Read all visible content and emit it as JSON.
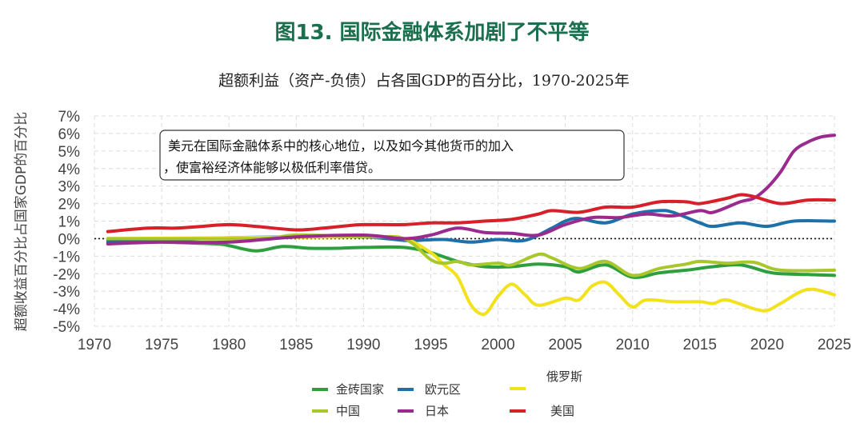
{
  "figure_title": "图13. 国际金融体系加剧了不平等",
  "chart_data": {
    "type": "line",
    "title": "超额利益（资产-负债）占各国GDP的百分比，1970-2025年",
    "xlabel": "",
    "ylabel": "超额收益百分比占国家GDP的百分比",
    "xlim": [
      1970,
      2025
    ],
    "ylim": [
      -5,
      7
    ],
    "x_ticks": [
      "1970",
      "1975",
      "1980",
      "1985",
      "1990",
      "1995",
      "2000",
      "2005",
      "2010",
      "2015",
      "2020",
      "2025"
    ],
    "y_ticks": [
      "7%",
      "6%",
      "5%",
      "4%",
      "3%",
      "2%",
      "1%",
      "0%",
      "-1%",
      "-2%",
      "-3%",
      "-4%",
      "-5%"
    ],
    "grid": true,
    "annotation": [
      "美元在国际金融体系中的核心地位，以及如今其他货币的加入",
      "，使富裕经济体能够以极低利率借贷。"
    ],
    "legend_position": "bottom",
    "series": [
      {
        "name": "金砖国家",
        "color": "#2e9e3e",
        "x": [
          1971,
          1975,
          1979,
          1980,
          1982,
          1984,
          1986,
          1988,
          1990,
          1993,
          1995,
          1997,
          1999,
          2001,
          2003,
          2005,
          2006,
          2008,
          2010,
          2012,
          2014,
          2016,
          2018,
          2020,
          2021,
          2023,
          2025
        ],
        "y": [
          -0.1,
          -0.2,
          -0.3,
          -0.4,
          -0.7,
          -0.45,
          -0.55,
          -0.55,
          -0.5,
          -0.5,
          -0.8,
          -1.3,
          -1.6,
          -1.6,
          -1.45,
          -1.6,
          -1.9,
          -1.5,
          -2.2,
          -1.95,
          -1.8,
          -1.6,
          -1.5,
          -1.9,
          -2.0,
          -2.05,
          -2.1
        ]
      },
      {
        "name": "欧元区",
        "color": "#1f6fa8",
        "x": [
          1971,
          1975,
          1980,
          1985,
          1990,
          1993,
          1994,
          1996,
          1998,
          2000,
          2002,
          2004,
          2005,
          2006,
          2008,
          2010,
          2012,
          2013,
          2015,
          2016,
          2018,
          2020,
          2022,
          2025
        ],
        "y": [
          -0.2,
          -0.1,
          0.05,
          0.1,
          0.1,
          -0.1,
          -0.1,
          -0.05,
          -0.2,
          -0.05,
          -0.1,
          0.6,
          1.0,
          1.15,
          0.9,
          1.4,
          1.6,
          1.5,
          0.9,
          0.7,
          0.9,
          0.7,
          1.0,
          1.0
        ]
      },
      {
        "name": "俄罗斯",
        "color": "#f2e21e",
        "x": [
          1971,
          1990,
          1993,
          1995,
          1996,
          1997,
          1998,
          1999,
          2000,
          2001,
          2002,
          2003,
          2005,
          2006,
          2007,
          2008,
          2009,
          2010,
          2011,
          2013,
          2015,
          2016,
          2017,
          2019,
          2020,
          2021,
          2023,
          2025
        ],
        "y": [
          0,
          0.1,
          0,
          -0.8,
          -1.5,
          -2.2,
          -3.8,
          -4.3,
          -3.3,
          -2.6,
          -3.2,
          -3.8,
          -3.4,
          -3.5,
          -2.7,
          -2.5,
          -3.2,
          -3.9,
          -3.5,
          -3.6,
          -3.6,
          -3.7,
          -3.5,
          -4.0,
          -4.1,
          -3.7,
          -2.9,
          -3.2
        ]
      },
      {
        "name": "中国",
        "color": "#a8c72a",
        "x": [
          1971,
          1982,
          1985,
          1990,
          1993,
          1995,
          1996,
          1997,
          1998,
          2000,
          2001,
          2003,
          2004,
          2006,
          2008,
          2010,
          2012,
          2014,
          2015,
          2017,
          2019,
          2021,
          2025
        ],
        "y": [
          0,
          0,
          0.2,
          0.1,
          0,
          -1.2,
          -1.4,
          -1.3,
          -1.5,
          -1.4,
          -1.5,
          -0.9,
          -1.1,
          -1.7,
          -1.3,
          -2.1,
          -1.7,
          -1.45,
          -1.3,
          -1.4,
          -1.35,
          -1.8,
          -1.8
        ]
      },
      {
        "name": "日本",
        "color": "#9b2a8e",
        "x": [
          1971,
          1975,
          1980,
          1985,
          1990,
          1993,
          1995,
          1997,
          1999,
          2001,
          2003,
          2005,
          2007,
          2009,
          2011,
          2013,
          2015,
          2016,
          2018,
          2019,
          2020,
          2021,
          2022,
          2023,
          2024,
          2025
        ],
        "y": [
          -0.3,
          -0.2,
          -0.2,
          0.1,
          0.2,
          0,
          0.2,
          0.6,
          0.35,
          0.3,
          0.2,
          0.8,
          1.2,
          1.2,
          1.4,
          1.3,
          1.6,
          1.5,
          2.1,
          2.3,
          2.9,
          3.8,
          5.0,
          5.5,
          5.8,
          5.9
        ]
      },
      {
        "name": "美国",
        "color": "#d6202a",
        "x": [
          1971,
          1974,
          1976,
          1978,
          1980,
          1982,
          1985,
          1987,
          1989,
          1990,
          1993,
          1995,
          1997,
          1999,
          2001,
          2003,
          2004,
          2006,
          2008,
          2010,
          2012,
          2014,
          2015,
          2017,
          2018,
          2019,
          2021,
          2023,
          2025
        ],
        "y": [
          0.4,
          0.6,
          0.6,
          0.7,
          0.8,
          0.7,
          0.5,
          0.6,
          0.75,
          0.8,
          0.8,
          0.9,
          0.9,
          1.0,
          1.1,
          1.4,
          1.6,
          1.5,
          1.8,
          1.8,
          2.1,
          2.1,
          2.0,
          2.3,
          2.5,
          2.4,
          2.0,
          2.2,
          2.2
        ]
      }
    ]
  }
}
